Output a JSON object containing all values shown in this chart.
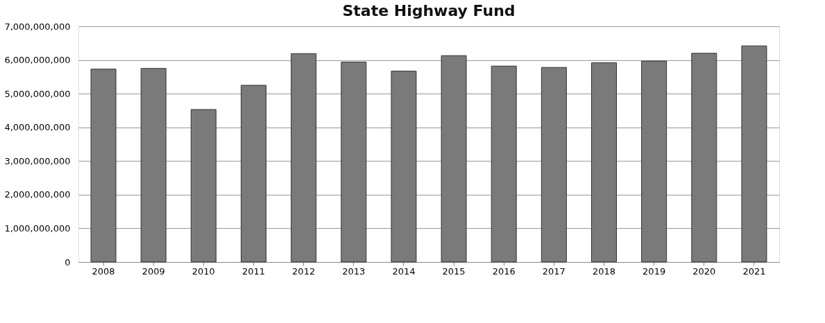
{
  "chart_data": {
    "type": "bar",
    "title": "State Highway Fund",
    "categories": [
      "2008",
      "2009",
      "2010",
      "2011",
      "2012",
      "2013",
      "2014",
      "2015",
      "2016",
      "2017",
      "2018",
      "2019",
      "2020",
      "2021"
    ],
    "values": [
      5730000000,
      5750000000,
      4530000000,
      5250000000,
      6190000000,
      5940000000,
      5670000000,
      6130000000,
      5820000000,
      5780000000,
      5920000000,
      5970000000,
      6200000000,
      6420000000
    ],
    "color": "#7a7a7a",
    "ylim": [
      0,
      7000000000
    ],
    "yticks": [
      {
        "value": 0,
        "label": "0"
      },
      {
        "value": 1000000000,
        "label": "1,000,000,000"
      },
      {
        "value": 2000000000,
        "label": "2,000,000,000"
      },
      {
        "value": 3000000000,
        "label": "3,000,000,000"
      },
      {
        "value": 4000000000,
        "label": "4,000,000,000"
      },
      {
        "value": 5000000000,
        "label": "5,000,000,000"
      },
      {
        "value": 6000000000,
        "label": "6,000,000,000"
      },
      {
        "value": 7000000000,
        "label": "7,000,000,000"
      }
    ],
    "grid": "y"
  }
}
